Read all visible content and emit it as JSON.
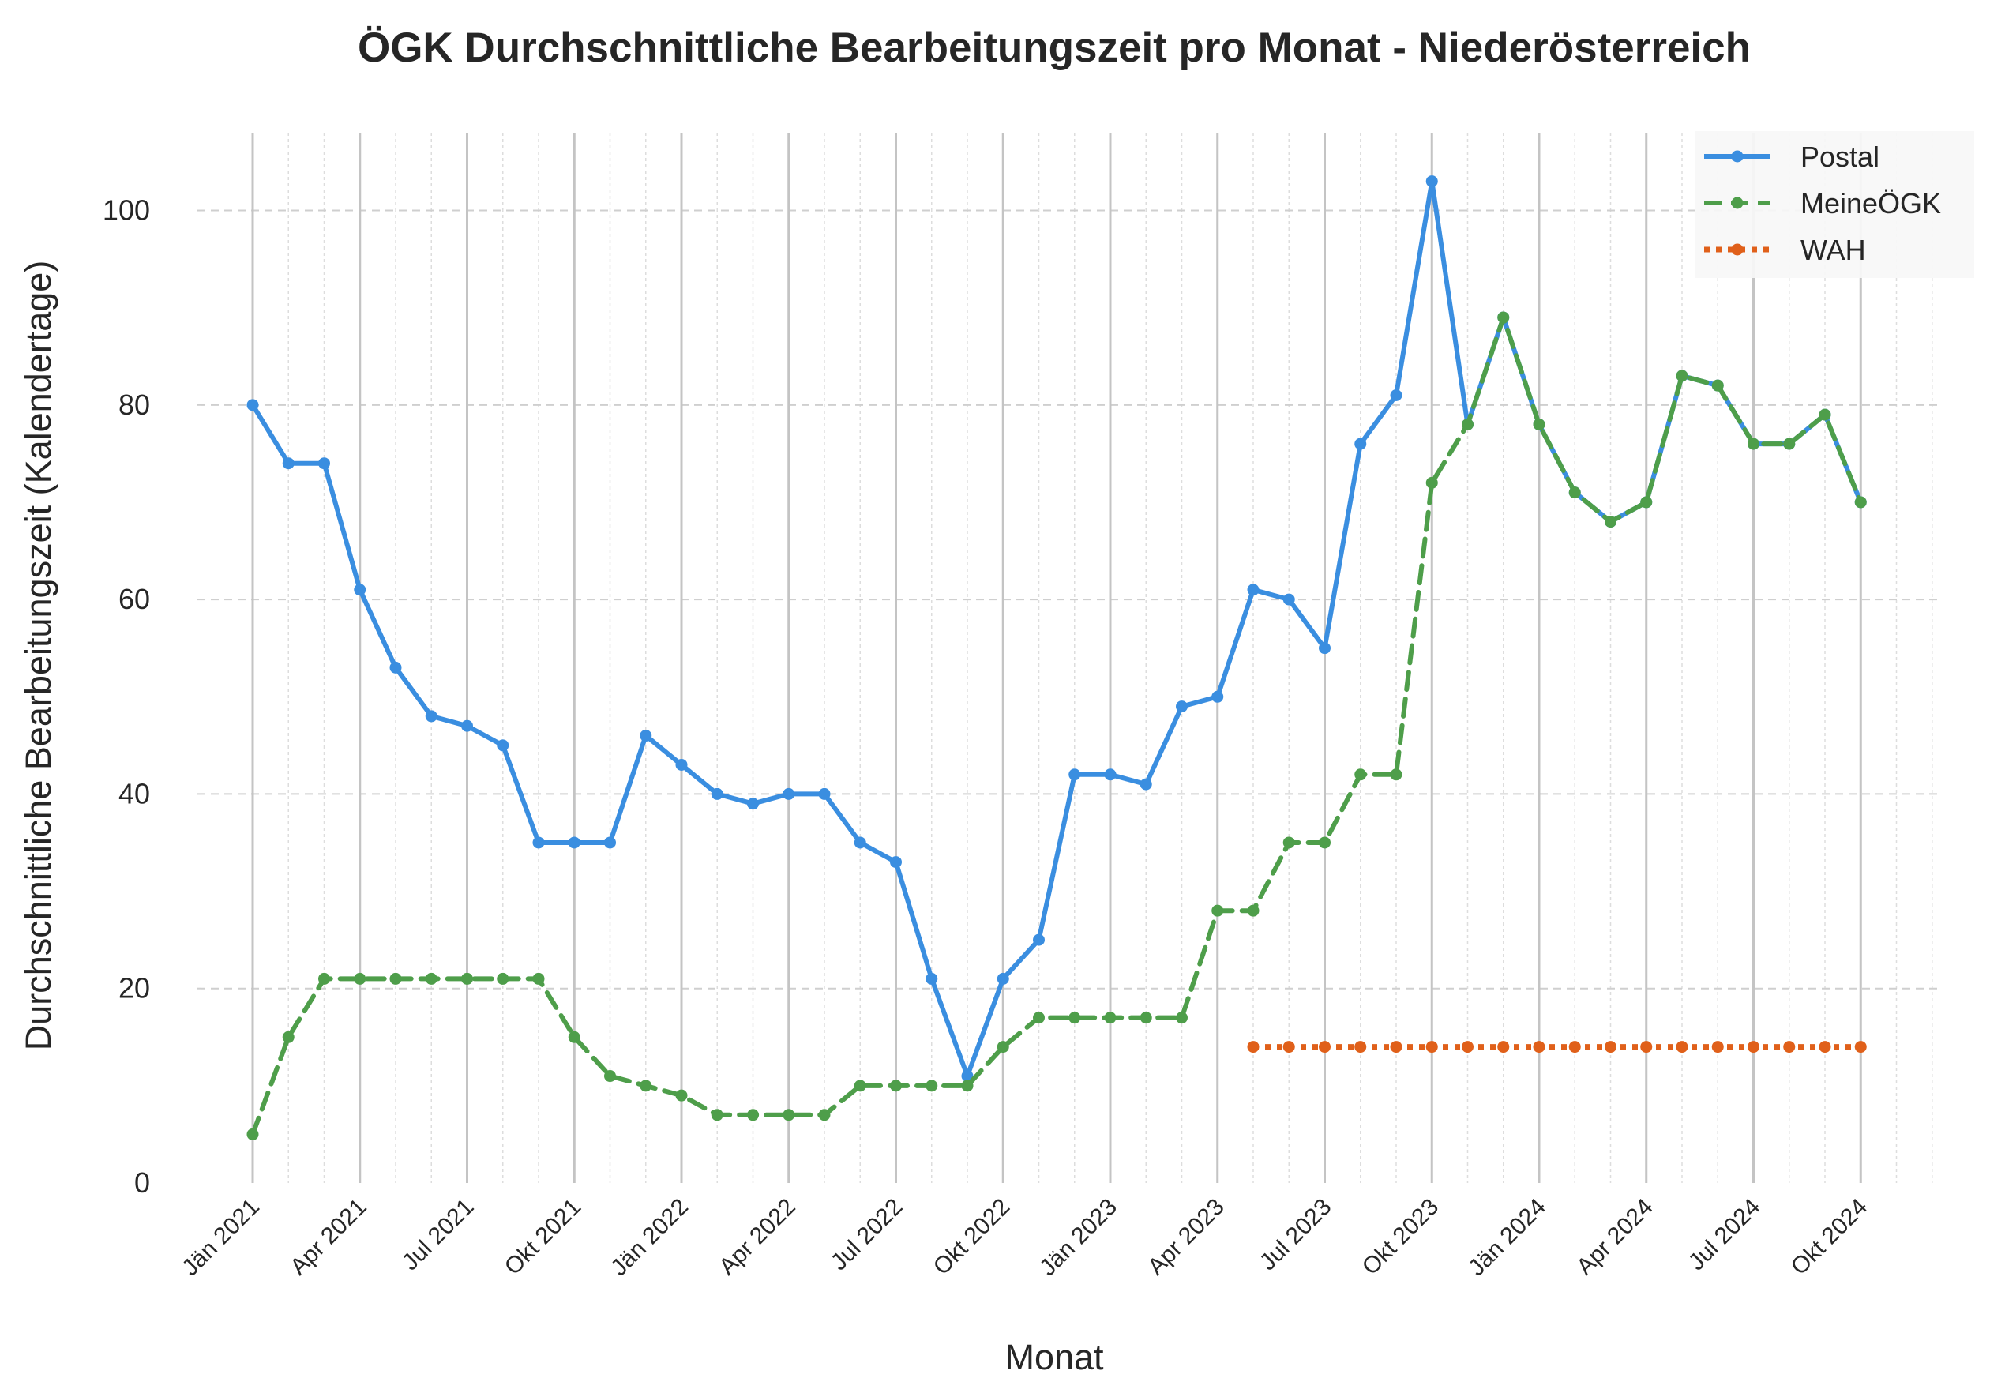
{
  "chart_data": {
    "type": "line",
    "title": "ÖGK Durchschnittliche Bearbeitungszeit pro Monat - Niederösterreich",
    "xlabel": "Monat",
    "ylabel": "Durchschnittliche Bearbeitungszeit (Kalendertage)",
    "ylim": [
      0,
      108
    ],
    "yticks": [
      0,
      20,
      40,
      60,
      80,
      100
    ],
    "grid": true,
    "legend_position": "top-right",
    "x_start": "2021-01",
    "x_tick_labels": [
      "Jän 2021",
      "Apr 2021",
      "Jul 2021",
      "Okt 2021",
      "Jän 2022",
      "Apr 2022",
      "Jul 2022",
      "Okt 2022",
      "Jän 2023",
      "Apr 2023",
      "Jul 2023",
      "Okt 2023",
      "Jän 2024",
      "Apr 2024",
      "Jul 2024",
      "Okt 2024"
    ],
    "x": [
      "2021-01",
      "2021-02",
      "2021-03",
      "2021-04",
      "2021-05",
      "2021-06",
      "2021-07",
      "2021-08",
      "2021-09",
      "2021-10",
      "2021-11",
      "2021-12",
      "2022-01",
      "2022-02",
      "2022-03",
      "2022-04",
      "2022-05",
      "2022-06",
      "2022-07",
      "2022-08",
      "2022-09",
      "2022-10",
      "2022-11",
      "2022-12",
      "2023-01",
      "2023-02",
      "2023-03",
      "2023-04",
      "2023-05",
      "2023-06",
      "2023-07",
      "2023-08",
      "2023-09",
      "2023-10",
      "2023-11",
      "2023-12",
      "2024-01",
      "2024-02",
      "2024-03",
      "2024-04",
      "2024-05",
      "2024-06",
      "2024-07",
      "2024-08",
      "2024-09",
      "2024-10"
    ],
    "series": [
      {
        "name": "Postal",
        "color": "#3a8ee0",
        "style": "solid",
        "values": [
          80,
          74,
          74,
          61,
          53,
          48,
          47,
          45,
          35,
          35,
          35,
          46,
          43,
          40,
          39,
          40,
          40,
          35,
          33,
          21,
          11,
          21,
          25,
          42,
          42,
          41,
          49,
          50,
          61,
          60,
          55,
          76,
          81,
          103,
          78,
          89,
          78,
          71,
          68,
          70,
          83,
          82,
          76,
          76,
          79,
          70
        ]
      },
      {
        "name": "MeineÖGK",
        "color": "#4e9e4a",
        "style": "dashed",
        "values": [
          5,
          15,
          21,
          21,
          21,
          21,
          21,
          21,
          21,
          15,
          11,
          10,
          9,
          7,
          7,
          7,
          7,
          10,
          10,
          10,
          10,
          14,
          17,
          17,
          17,
          17,
          17,
          28,
          28,
          35,
          35,
          42,
          42,
          72,
          78,
          89,
          78,
          71,
          68,
          70,
          83,
          82,
          76,
          76,
          79,
          70
        ]
      },
      {
        "name": "WAH",
        "color": "#e0601a",
        "style": "dotted",
        "values": [
          null,
          null,
          null,
          null,
          null,
          null,
          null,
          null,
          null,
          null,
          null,
          null,
          null,
          null,
          null,
          null,
          null,
          null,
          null,
          null,
          null,
          null,
          null,
          null,
          null,
          null,
          null,
          null,
          14,
          14,
          14,
          14,
          14,
          14,
          14,
          14,
          14,
          14,
          14,
          14,
          14,
          14,
          14,
          14,
          14,
          14
        ]
      }
    ]
  }
}
